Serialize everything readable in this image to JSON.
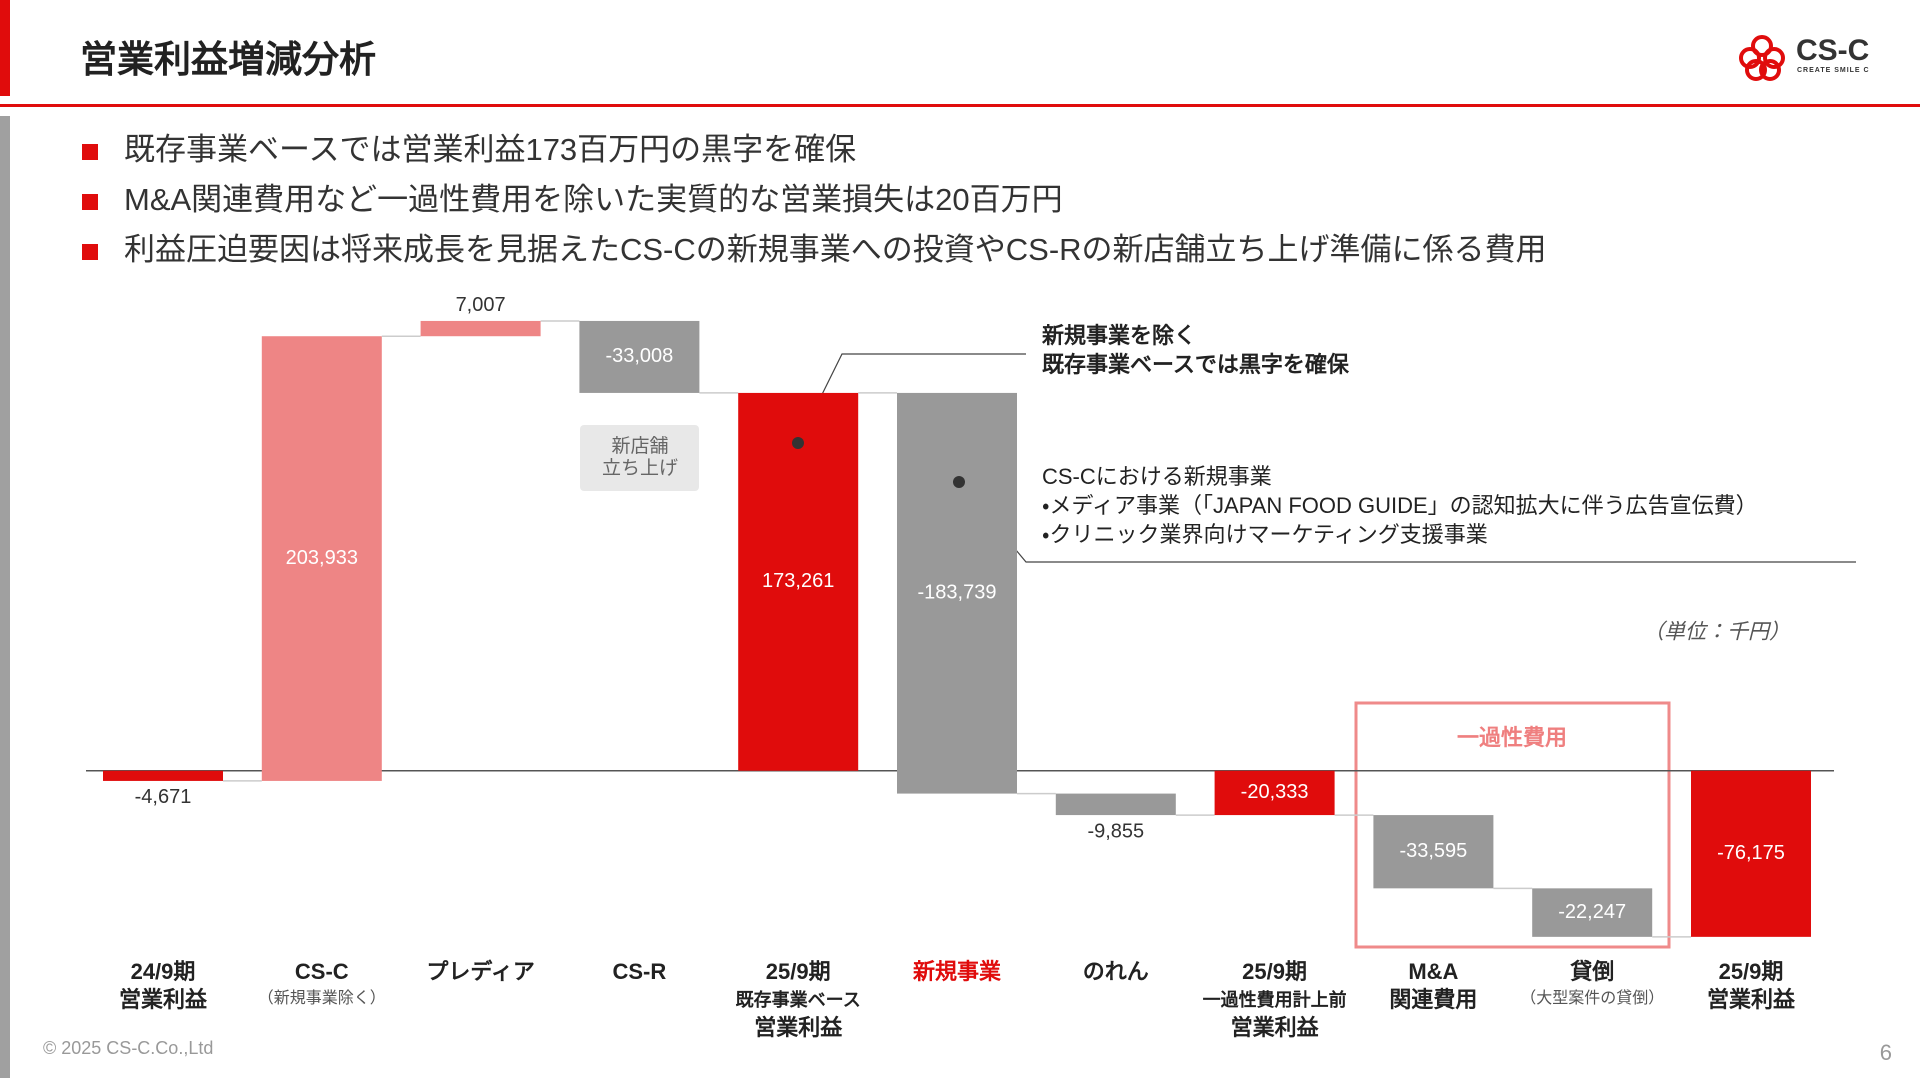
{
  "header": {
    "title": "営業利益増減分析",
    "logo": "CS-C",
    "logo_tagline": "CREATE SMILE C"
  },
  "bullets": [
    "既存事業ベースでは営業利益173百万円の黒字を確保",
    "M&A関連費用など一過性費用を除いた実質的な営業損失は20百万円",
    "利益圧迫要因は将来成長を見据えたCS-Cの新規事業への投資やCS-Rの新店舗立ち上げ準備に係る費用"
  ],
  "chart_data": {
    "type": "waterfall",
    "categories": [
      [
        "24/9期",
        "営業利益"
      ],
      [
        "CS-C"
      ],
      [
        "プレディア"
      ],
      [
        "CS-R"
      ],
      [
        "25/9期",
        "既存事業ベース",
        "営業利益"
      ],
      [
        "新規事業"
      ],
      [
        "のれん"
      ],
      [
        "25/9期",
        "一過性費用計上前",
        "営業利益"
      ],
      [
        "M&A",
        "関連費用"
      ],
      [
        "貸倒"
      ],
      [
        "25/9期",
        "営業利益"
      ]
    ],
    "category_notes": [
      null,
      "（新規事業除く）",
      null,
      null,
      null,
      null,
      null,
      null,
      null,
      "（大型案件の貸倒）",
      null
    ],
    "values": [
      -4671,
      203933,
      7007,
      -33008,
      173261,
      -183739,
      -9855,
      -20333,
      -33595,
      -22247,
      -76175
    ],
    "value_labels": [
      "-4,671",
      "203,933",
      "7,007",
      "-33,008",
      "173,261",
      "-183,739",
      "-9,855",
      "-20,333",
      "-33,595",
      "-22,247",
      "-76,175"
    ],
    "totals": [
      true,
      false,
      false,
      false,
      true,
      false,
      false,
      true,
      false,
      false,
      true
    ],
    "colors": [
      "#e00c0c",
      "#ee8585",
      "#ee8585",
      "#999999",
      "#e00c0c",
      "#999999",
      "#999999",
      "#e00c0c",
      "#999999",
      "#999999",
      "#e00c0c"
    ],
    "category_colors": [
      "#222222",
      "#222222",
      "#222222",
      "#222222",
      "#222222",
      "#e00c0c",
      "#222222",
      "#222222",
      "#222222",
      "#222222",
      "#222222"
    ],
    "ylim": [
      -90000,
      220000
    ],
    "unit_label": "（単位：千円）",
    "annotations": [
      [
        "新規事業を除く",
        "既存事業ベースでは黒字を確保"
      ],
      [
        "CS-Cにおける新規事業",
        "・メディア事業（「JAPAN FOOD GUIDE」の認知拡大に伴う広告宣伝費）",
        "・クリニック業界向けマーケティング支援事業"
      ],
      [
        "新店舗",
        "立ち上げ"
      ]
    ],
    "group_label": "一過性費用"
  },
  "footer": {
    "copyright": "© 2025 CS-C.Co.,Ltd",
    "page": 6
  }
}
